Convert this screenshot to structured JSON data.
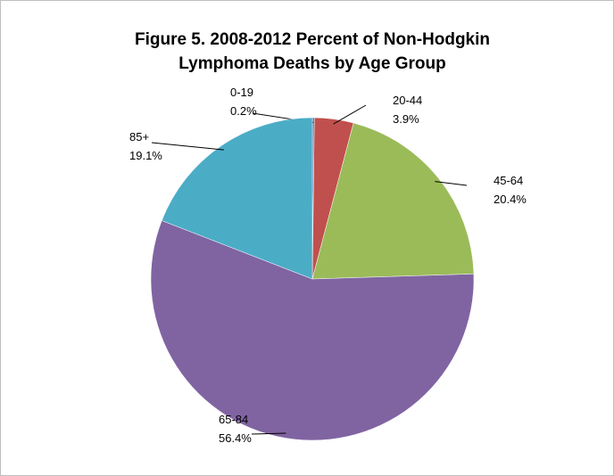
{
  "chart_data": {
    "type": "pie",
    "title": [
      "Figure 5.  2008-2012 Percent of Non-Hodgkin",
      "Lymphoma Deaths by Age Group"
    ],
    "categories": [
      "0-19",
      "20-44",
      "45-64",
      "65-84",
      "85+"
    ],
    "values": [
      0.2,
      3.9,
      20.4,
      56.4,
      19.1
    ],
    "value_labels": [
      "0.2%",
      "3.9%",
      "20.4%",
      "56.4%",
      "19.1%"
    ],
    "colors": [
      "#4f81bd",
      "#c0504d",
      "#9bbb59",
      "#8064a2",
      "#4bacc6"
    ]
  }
}
